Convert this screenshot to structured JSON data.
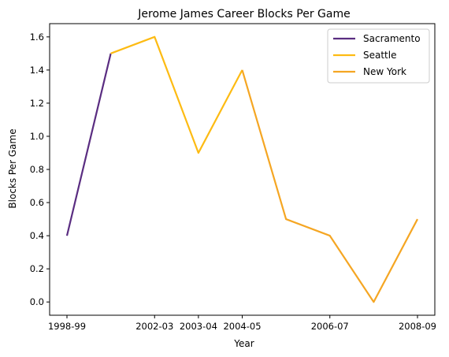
{
  "chart_data": {
    "type": "line",
    "title": "Jerome James Career Blocks Per Game",
    "xlabel": "Year",
    "ylabel": "Blocks Per Game",
    "x_ticks": [
      "1998-99",
      "2002-03",
      "2003-04",
      "2004-05",
      "2006-07",
      "2008-09"
    ],
    "y_ticks": [
      "0.0",
      "0.2",
      "0.4",
      "0.6",
      "0.8",
      "1.0",
      "1.2",
      "1.4",
      "1.6"
    ],
    "ylim": [
      -0.08,
      1.68
    ],
    "legend_position": "top-right",
    "series": [
      {
        "name": "Sacramento",
        "color": "#5a2d81",
        "points": [
          {
            "x": "1998-99",
            "y": 0.4
          },
          {
            "x": "2000-01",
            "y": 1.5
          }
        ]
      },
      {
        "name": "Seattle",
        "color": "#fdbb13",
        "points": [
          {
            "x": "2000-01",
            "y": 1.5
          },
          {
            "x": "2002-03",
            "y": 1.6
          },
          {
            "x": "2003-04",
            "y": 0.9
          },
          {
            "x": "2004-05",
            "y": 1.4
          }
        ]
      },
      {
        "name": "New York",
        "color": "#f5a623",
        "points": [
          {
            "x": "2004-05",
            "y": 1.4
          },
          {
            "x": "2005-06",
            "y": 0.5
          },
          {
            "x": "2006-07",
            "y": 0.4
          },
          {
            "x": "2007-08",
            "y": 0.0
          },
          {
            "x": "2008-09",
            "y": 0.5
          }
        ]
      }
    ]
  }
}
